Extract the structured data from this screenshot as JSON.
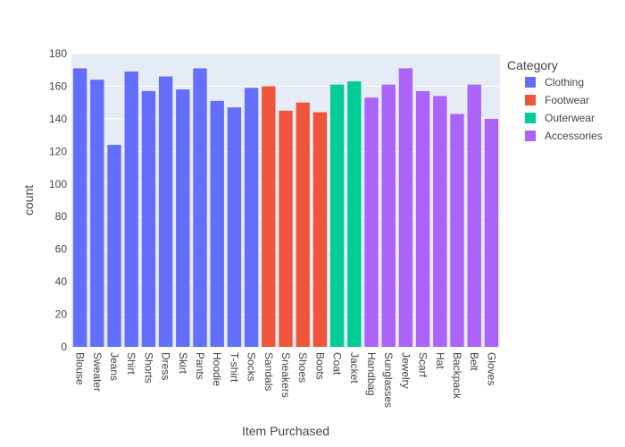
{
  "chart_data": {
    "type": "bar",
    "xlabel": "Item Purchased",
    "ylabel": "count",
    "ylim": [
      0,
      180
    ],
    "yticks": [
      0,
      20,
      40,
      60,
      80,
      100,
      120,
      140,
      160,
      180
    ],
    "grid": true,
    "legend": {
      "title": "Category",
      "placement": "right"
    },
    "series": [
      {
        "name": "Clothing",
        "color": "#636efa",
        "categories": [
          "Blouse",
          "Sweater",
          "Jeans",
          "Shirt",
          "Shorts",
          "Dress",
          "Skirt",
          "Pants",
          "Hoodie",
          "T-shirt",
          "Socks"
        ],
        "values": [
          171,
          164,
          124,
          169,
          157,
          166,
          158,
          171,
          151,
          147,
          159
        ]
      },
      {
        "name": "Footwear",
        "color": "#ef553b",
        "categories": [
          "Sandals",
          "Sneakers",
          "Shoes",
          "Boots"
        ],
        "values": [
          160,
          145,
          150,
          144
        ]
      },
      {
        "name": "Outerwear",
        "color": "#00cc96",
        "categories": [
          "Coat",
          "Jacket"
        ],
        "values": [
          161,
          163
        ]
      },
      {
        "name": "Accessories",
        "color": "#ab63fa",
        "categories": [
          "Handbag",
          "Sunglasses",
          "Jewelry",
          "Scarf",
          "Hat",
          "Backpack",
          "Belt",
          "Gloves"
        ],
        "values": [
          153,
          161,
          171,
          157,
          154,
          143,
          161,
          140
        ]
      }
    ]
  }
}
